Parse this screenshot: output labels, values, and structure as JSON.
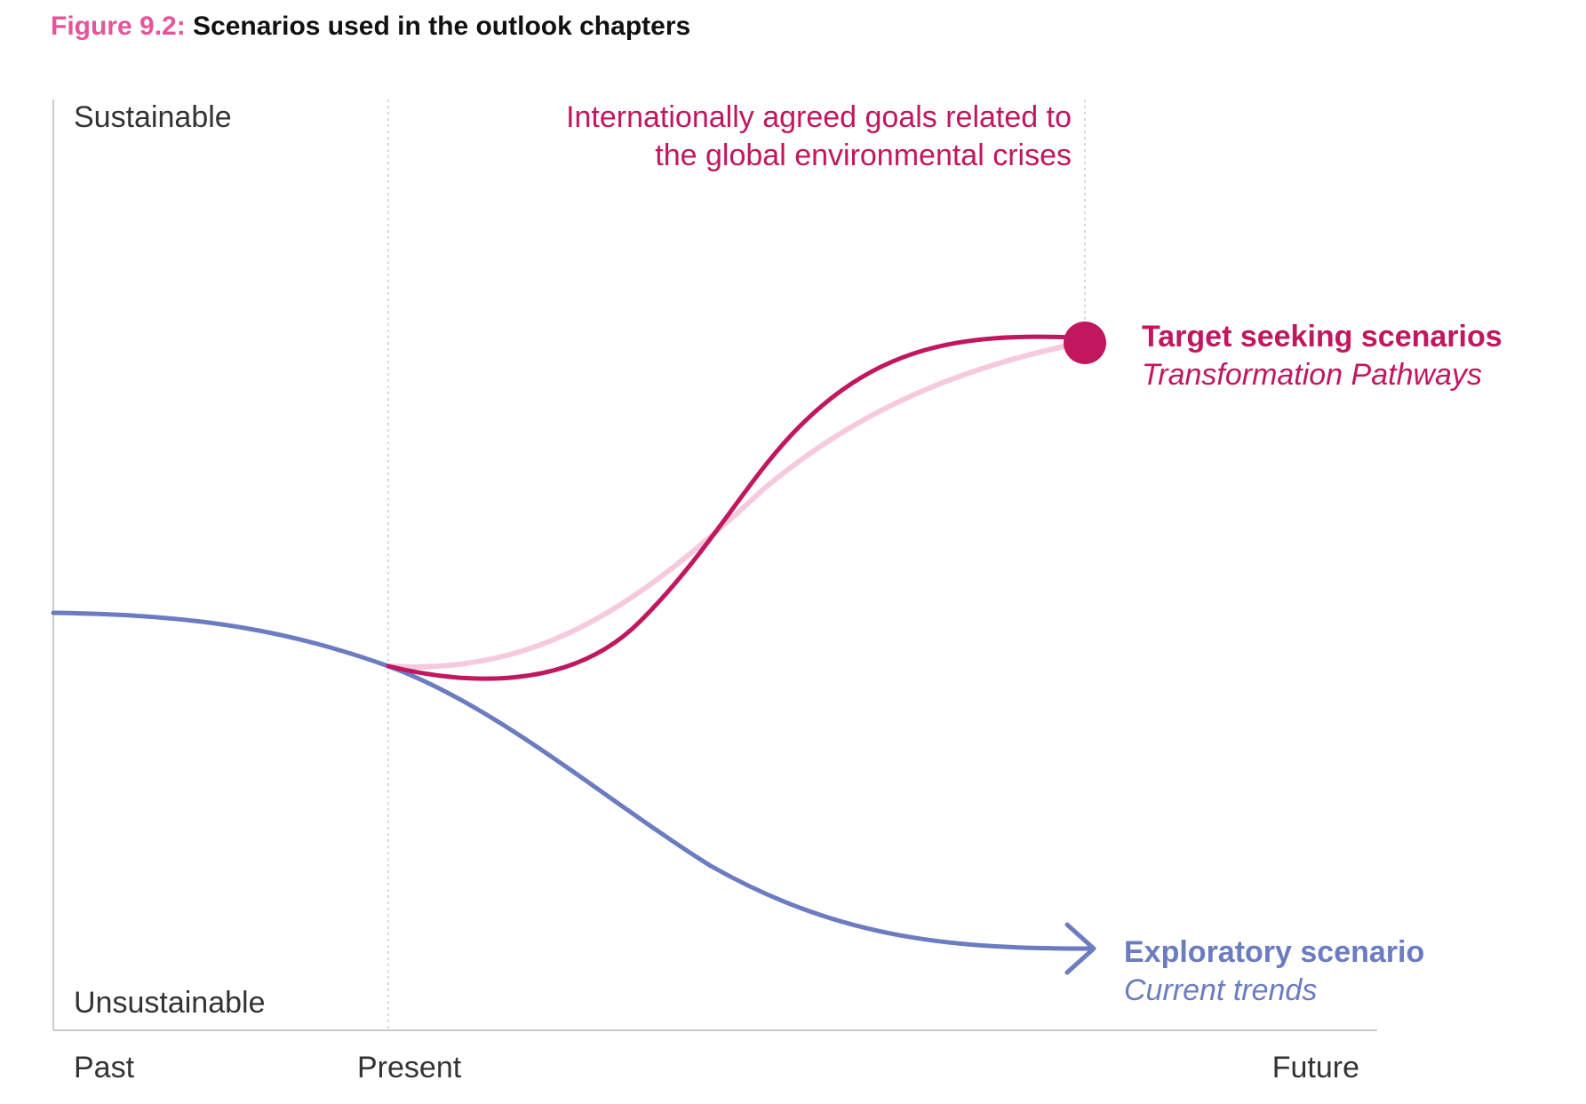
{
  "figure": {
    "number": "Figure 9.2:",
    "title": "Scenarios used in the outlook chapters"
  },
  "axes": {
    "y_top": "Sustainable",
    "y_bottom": "Unsustainable",
    "x_labels": [
      "Past",
      "Present",
      "Future"
    ]
  },
  "goal_annotation": {
    "line1": "Internationally agreed goals related to",
    "line2": "the global environmental crises"
  },
  "target_scenario": {
    "title": "Target seeking scenarios",
    "subtitle": "Transformation Pathways"
  },
  "exploratory_scenario": {
    "title": "Exploratory scenario",
    "subtitle": "Current trends"
  },
  "colors": {
    "figure_number": "#e6559a",
    "target": "#c0175f",
    "target_light": "#f6cade",
    "exploratory": "#6b7cc0",
    "axis": "#cccccc",
    "text": "#333333"
  }
}
